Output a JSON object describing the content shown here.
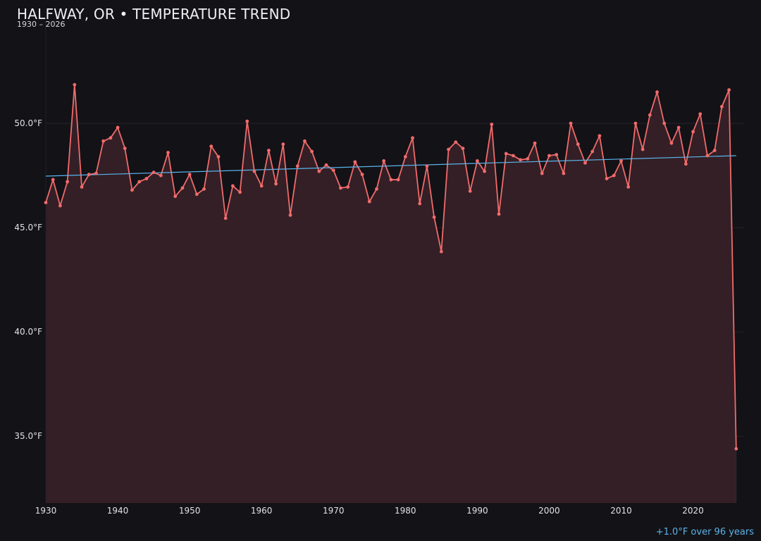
{
  "header": {
    "title": "HALFWAY, OR • TEMPERATURE TREND",
    "subtitle": "1930 – 2026"
  },
  "footer": {
    "trend_note": "+1.0°F over 96 years"
  },
  "colors": {
    "background": "#131217",
    "series_line": "#f06b6b",
    "series_fill": "#341f26",
    "trend_line": "#5ab4ea",
    "grid": "#27252c",
    "tick_label": "#e2e2e6",
    "footer_note": "#5ab4ea"
  },
  "chart_data": {
    "type": "line",
    "title": "HALFWAY, OR • TEMPERATURE TREND",
    "subtitle": "1930 – 2026",
    "xlabel": "",
    "ylabel": "",
    "x": [
      1930,
      1931,
      1932,
      1933,
      1934,
      1935,
      1936,
      1937,
      1938,
      1939,
      1940,
      1941,
      1942,
      1943,
      1944,
      1945,
      1946,
      1947,
      1948,
      1949,
      1950,
      1951,
      1952,
      1953,
      1954,
      1955,
      1956,
      1957,
      1958,
      1959,
      1960,
      1961,
      1962,
      1963,
      1964,
      1965,
      1966,
      1967,
      1968,
      1969,
      1970,
      1971,
      1972,
      1973,
      1974,
      1975,
      1976,
      1977,
      1978,
      1979,
      1980,
      1981,
      1982,
      1983,
      1984,
      1985,
      1986,
      1987,
      1988,
      1989,
      1990,
      1991,
      1992,
      1993,
      1994,
      1995,
      1996,
      1997,
      1998,
      1999,
      2000,
      2001,
      2002,
      2003,
      2004,
      2005,
      2006,
      2007,
      2008,
      2009,
      2010,
      2011,
      2012,
      2013,
      2014,
      2015,
      2016,
      2017,
      2018,
      2019,
      2020,
      2021,
      2022,
      2023,
      2024,
      2025,
      2026
    ],
    "series": [
      {
        "values": [
          46.2,
          47.3,
          46.05,
          47.2,
          51.85,
          46.95,
          47.55,
          47.6,
          49.15,
          49.3,
          49.8,
          48.8,
          46.8,
          47.2,
          47.35,
          47.65,
          47.5,
          48.6,
          46.5,
          46.9,
          47.55,
          46.6,
          46.85,
          48.9,
          48.4,
          45.45,
          47.0,
          46.7,
          50.1,
          47.7,
          47.0,
          48.7,
          47.1,
          49.0,
          45.6,
          47.95,
          49.15,
          48.65,
          47.7,
          48.0,
          47.75,
          46.9,
          46.95,
          48.15,
          47.55,
          46.25,
          46.85,
          48.2,
          47.3,
          47.3,
          48.4,
          49.3,
          46.15,
          47.95,
          45.5,
          43.85,
          48.75,
          49.1,
          48.8,
          46.75,
          48.2,
          47.7,
          49.95,
          45.65,
          48.55,
          48.45,
          48.25,
          48.3,
          49.05,
          47.6,
          48.45,
          48.5,
          47.6,
          50.0,
          49.0,
          48.1,
          48.65,
          49.4,
          47.35,
          47.5,
          48.2,
          46.95,
          50.0,
          48.75,
          50.4,
          51.5,
          50.0,
          49.05,
          49.8,
          48.05,
          49.6,
          50.45,
          48.45,
          48.7,
          50.8,
          51.6,
          34.4
        ]
      }
    ],
    "trend": {
      "label": "+1.0°F over 96 years",
      "x": [
        1930,
        2026
      ],
      "y": [
        47.47,
        48.45
      ]
    },
    "xticks": [
      1930,
      1940,
      1950,
      1960,
      1970,
      1980,
      1990,
      2000,
      2010,
      2020
    ],
    "yticks": [
      35.0,
      40.0,
      45.0,
      50.0
    ],
    "ytick_labels": [
      "35.0°F",
      "40.0°F",
      "45.0°F",
      "50.0°F"
    ],
    "xlim": [
      1930,
      2027
    ],
    "ylim": [
      31.8,
      54.9
    ],
    "grid": true,
    "legend": "none"
  }
}
